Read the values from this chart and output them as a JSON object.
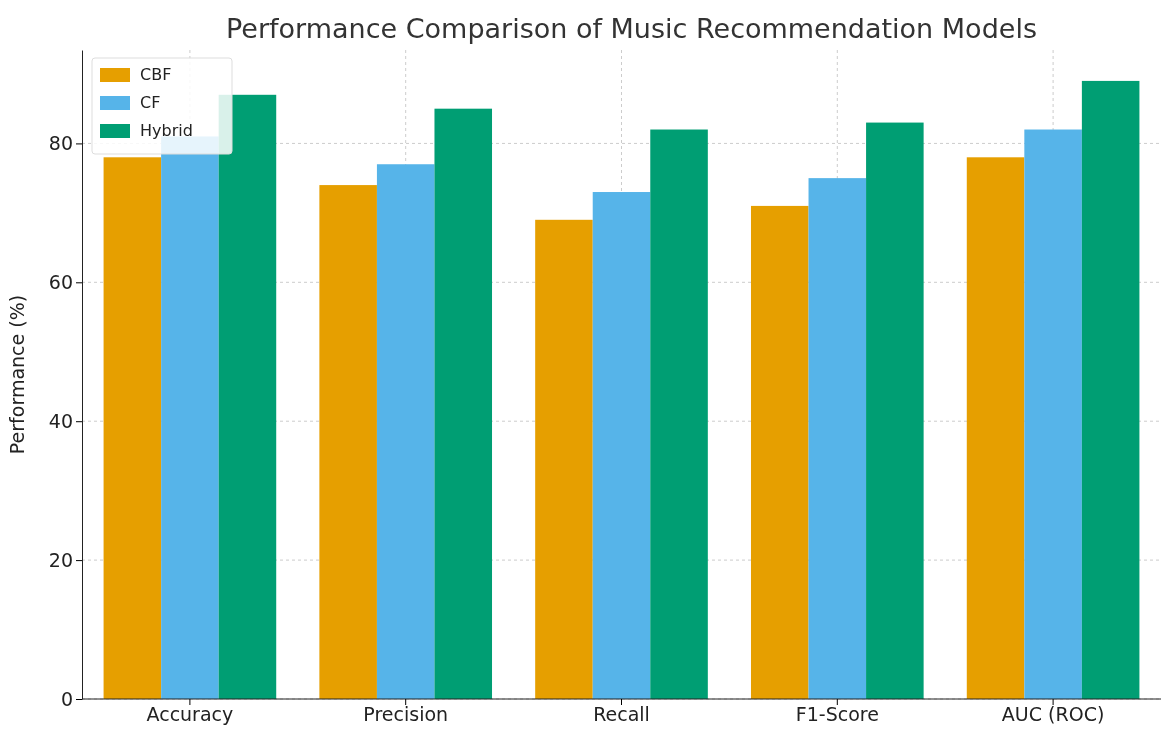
{
  "chart_data": {
    "type": "bar",
    "title": "Performance Comparison of Music Recommendation Models",
    "ylabel": "Performance (%)",
    "categories": [
      "Accuracy",
      "Precision",
      "Recall",
      "F1-Score",
      "AUC (ROC)"
    ],
    "series": [
      {
        "name": "CBF",
        "color": "#e69f00",
        "values": [
          78,
          74,
          69,
          71,
          78
        ]
      },
      {
        "name": "CF",
        "color": "#56b4e9",
        "values": [
          81,
          77,
          73,
          75,
          82
        ]
      },
      {
        "name": "Hybrid",
        "color": "#009e73",
        "values": [
          87,
          85,
          82,
          83,
          89
        ]
      }
    ],
    "ylim": [
      0,
      93.45
    ],
    "yticks": [
      0,
      20,
      40,
      60,
      80
    ],
    "grid": true,
    "legend": "top left"
  }
}
